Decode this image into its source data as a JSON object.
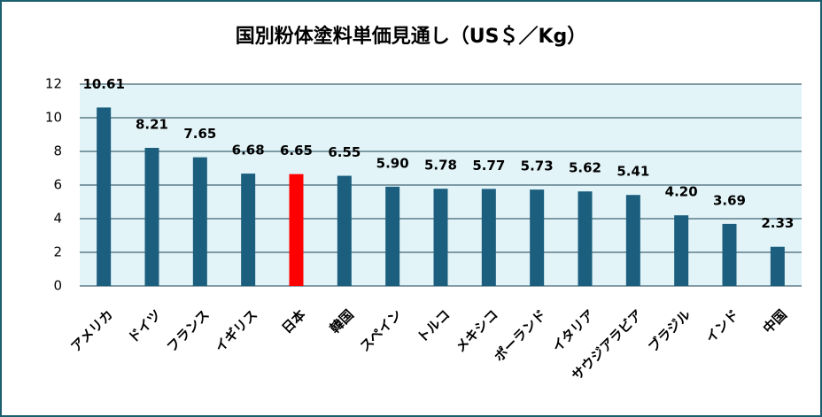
{
  "chart_data": {
    "type": "bar",
    "title": "国別粉体塗料単価見通し（US＄／Kg）",
    "categories": [
      "アメリカ",
      "ドイツ",
      "フランス",
      "イギリス",
      "日本",
      "韓国",
      "スペイン",
      "トルコ",
      "メキシコ",
      "ポーランド",
      "イタリア",
      "サウジアラビア",
      "ブラジル",
      "インド",
      "中国"
    ],
    "values": [
      10.61,
      8.21,
      7.65,
      6.68,
      6.65,
      6.55,
      5.9,
      5.78,
      5.77,
      5.73,
      5.62,
      5.41,
      4.2,
      3.69,
      2.33
    ],
    "value_labels": [
      "10.61",
      "8.21",
      "7.65",
      "6.68",
      "6.65",
      "6.55",
      "5.90",
      "5.78",
      "5.77",
      "5.73",
      "5.62",
      "5.41",
      "4.20",
      "3.69",
      "2.33"
    ],
    "colors": [
      "#1b5e7e",
      "#1b5e7e",
      "#1b5e7e",
      "#1b5e7e",
      "#ff0000",
      "#1b5e7e",
      "#1b5e7e",
      "#1b5e7e",
      "#1b5e7e",
      "#1b5e7e",
      "#1b5e7e",
      "#1b5e7e",
      "#1b5e7e",
      "#1b5e7e",
      "#1b5e7e"
    ],
    "ylim": [
      0,
      12
    ],
    "yticks": [
      0,
      2,
      4,
      6,
      8,
      10,
      12
    ],
    "grid": true
  }
}
